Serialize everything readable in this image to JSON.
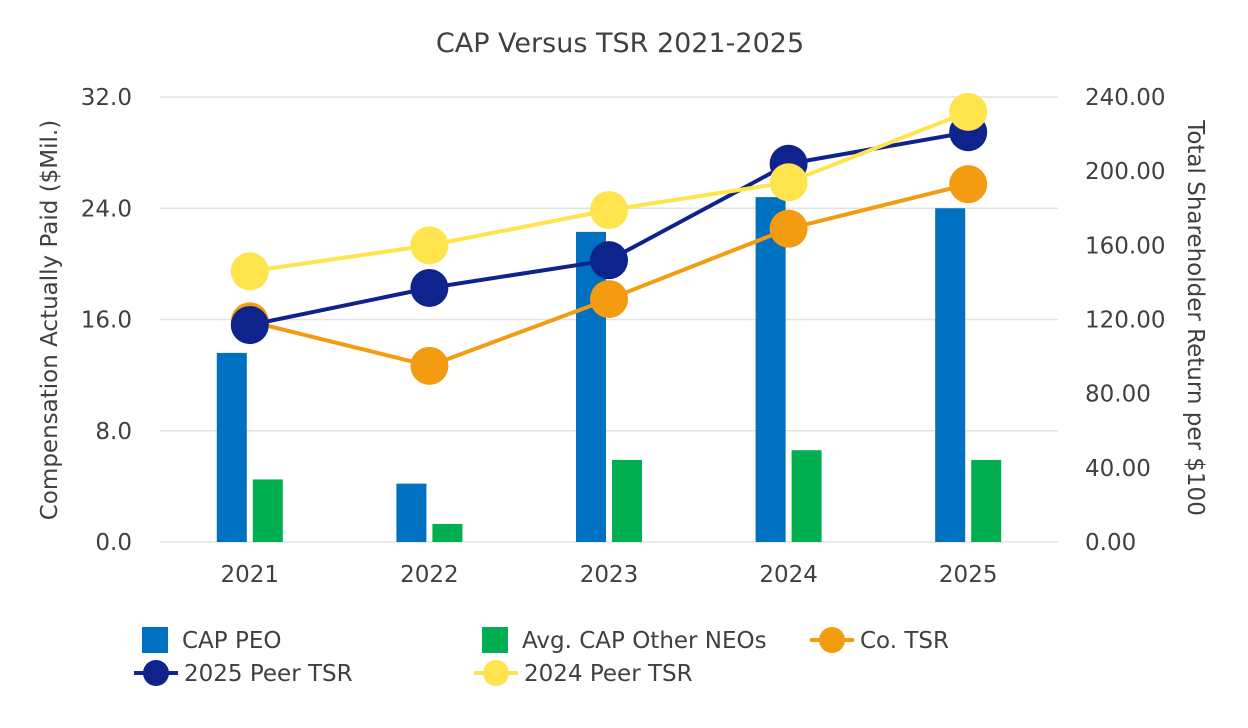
{
  "chart_data": {
    "type": "bar",
    "title": "CAP Versus TSR 2021-2025",
    "categories": [
      "2021",
      "2022",
      "2023",
      "2024",
      "2025"
    ],
    "y_left": {
      "label": "Compensation Actually Paid ($Mil.)",
      "min": 0,
      "max": 32,
      "step": 8,
      "decimals": 1,
      "ticks": [
        "0.0",
        "8.0",
        "16.0",
        "24.0",
        "32.0"
      ]
    },
    "y_right": {
      "label": "Total Shareholder Return per $100",
      "min": 0,
      "max": 240,
      "step": 40,
      "decimals": 2,
      "ticks": [
        "0.00",
        "40.00",
        "80.00",
        "120.00",
        "160.00",
        "200.00",
        "240.00"
      ]
    },
    "grid": true,
    "legend_position": "bottom",
    "bar_series": [
      {
        "name": "CAP PEO",
        "color": "#0070C0",
        "values": [
          13.6,
          4.2,
          22.3,
          24.8,
          24.0
        ]
      },
      {
        "name": "Avg. CAP Other NEOs",
        "color": "#00B050",
        "values": [
          4.5,
          1.3,
          5.9,
          6.6,
          5.9
        ]
      }
    ],
    "line_series": [
      {
        "name": "Co. TSR",
        "color": "#F39C12",
        "values": [
          119,
          95,
          131,
          169,
          193
        ]
      },
      {
        "name": "2025 Peer TSR",
        "color": "#0F238C",
        "values": [
          117,
          137,
          152,
          204,
          221
        ]
      },
      {
        "name": "2024 Peer TSR",
        "color": "#FFE44D",
        "values": [
          146,
          160,
          179,
          194,
          232
        ]
      }
    ]
  }
}
